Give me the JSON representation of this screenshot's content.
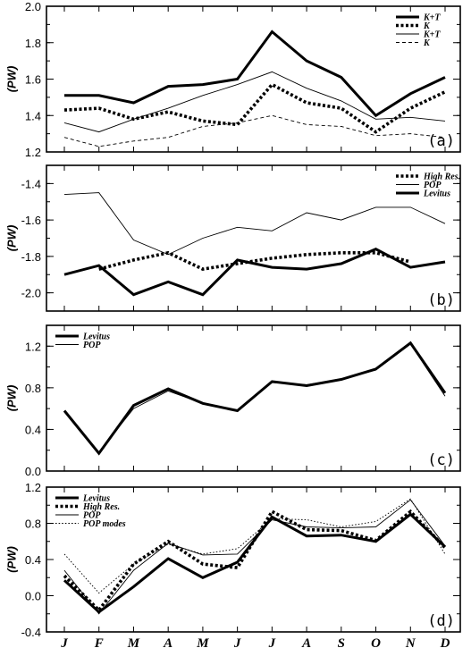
{
  "chart_data": [
    {
      "type": "line",
      "panel_label": "(a)",
      "ylabel": "(PW)",
      "ylim": [
        1.2,
        2.0
      ],
      "yticks": [
        1.2,
        1.4,
        1.6,
        1.8,
        2.0
      ],
      "ytick_labels": [
        "1.2",
        "1.4",
        "1.6",
        "1.8",
        "2.0"
      ],
      "minor_step": 0.1,
      "legend_position": "top-right",
      "categories": [
        "J",
        "F",
        "M",
        "A",
        "M",
        "J",
        "J",
        "A",
        "S",
        "O",
        "N",
        "D"
      ],
      "series": [
        {
          "name": "K+T",
          "style": "thick-solid",
          "values": [
            1.51,
            1.51,
            1.47,
            1.56,
            1.57,
            1.6,
            1.86,
            1.7,
            1.61,
            1.4,
            1.52,
            1.61
          ]
        },
        {
          "name": "K",
          "style": "thick-dotted",
          "values": [
            1.43,
            1.44,
            1.38,
            1.42,
            1.37,
            1.35,
            1.57,
            1.47,
            1.44,
            1.31,
            1.44,
            1.53
          ]
        },
        {
          "name": "K+T",
          "style": "thin-solid",
          "values": [
            1.36,
            1.31,
            1.38,
            1.44,
            1.51,
            1.57,
            1.64,
            1.55,
            1.48,
            1.38,
            1.39,
            1.37
          ]
        },
        {
          "name": "K",
          "style": "thin-dashed",
          "values": [
            1.28,
            1.23,
            1.26,
            1.28,
            1.34,
            1.36,
            1.4,
            1.35,
            1.34,
            1.29,
            1.3,
            1.28
          ]
        }
      ]
    },
    {
      "type": "line",
      "panel_label": "(b)",
      "ylabel": "(PW)",
      "ylim": [
        -2.1,
        -1.3
      ],
      "yticks": [
        -2.0,
        -1.8,
        -1.6,
        -1.4
      ],
      "ytick_labels": [
        "-2.0",
        "-1.8",
        "-1.6",
        "-1.4"
      ],
      "minor_step": 0.1,
      "legend_position": "top-right",
      "categories": [
        "J",
        "F",
        "M",
        "A",
        "M",
        "J",
        "J",
        "A",
        "S",
        "O",
        "N",
        "D"
      ],
      "series": [
        {
          "name": "High Res.",
          "style": "thick-dotted",
          "values": [
            null,
            -1.87,
            -1.82,
            -1.78,
            -1.87,
            -1.84,
            -1.81,
            -1.79,
            -1.78,
            -1.78,
            -1.83,
            null
          ]
        },
        {
          "name": "POP",
          "style": "thin-solid",
          "values": [
            -1.46,
            -1.45,
            -1.71,
            -1.79,
            -1.7,
            -1.64,
            -1.66,
            -1.56,
            -1.6,
            -1.53,
            -1.53,
            -1.62
          ]
        },
        {
          "name": "Levitus",
          "style": "thick-solid",
          "values": [
            -1.9,
            -1.85,
            -2.01,
            -1.94,
            -2.01,
            -1.82,
            -1.86,
            -1.87,
            -1.84,
            -1.76,
            -1.86,
            -1.83
          ]
        }
      ]
    },
    {
      "type": "line",
      "panel_label": "(c)",
      "ylabel": "(PW)",
      "ylim": [
        0.0,
        1.4
      ],
      "yticks": [
        0.0,
        0.4,
        0.8,
        1.2
      ],
      "ytick_labels": [
        "0.0",
        "0.4",
        "0.8",
        "1.2"
      ],
      "minor_step": 0.2,
      "legend_position": "top-left",
      "categories": [
        "J",
        "F",
        "M",
        "A",
        "M",
        "J",
        "J",
        "A",
        "S",
        "O",
        "N",
        "D"
      ],
      "series": [
        {
          "name": "Levitus",
          "style": "thick-solid",
          "values": [
            0.58,
            0.17,
            0.63,
            0.79,
            0.65,
            0.58,
            0.86,
            0.82,
            0.88,
            0.98,
            1.23,
            0.75
          ]
        },
        {
          "name": "POP",
          "style": "thin-solid",
          "values": [
            0.57,
            0.18,
            0.6,
            0.77,
            0.65,
            0.58,
            0.85,
            0.83,
            0.88,
            0.97,
            1.22,
            0.72
          ]
        }
      ]
    },
    {
      "type": "line",
      "panel_label": "(d)",
      "ylabel": "(PW)",
      "ylim": [
        -0.4,
        1.2
      ],
      "yticks": [
        -0.4,
        0.0,
        0.4,
        0.8,
        1.2
      ],
      "ytick_labels": [
        "-0.4",
        "0.0",
        "0.4",
        "0.8",
        "1.2"
      ],
      "minor_step": 0.2,
      "legend_position": "top-left",
      "categories": [
        "J",
        "F",
        "M",
        "A",
        "M",
        "J",
        "J",
        "A",
        "S",
        "O",
        "N",
        "D"
      ],
      "series": [
        {
          "name": "Levitus",
          "style": "thick-solid",
          "values": [
            0.17,
            -0.18,
            0.1,
            0.41,
            0.2,
            0.37,
            0.87,
            0.66,
            0.67,
            0.6,
            0.9,
            0.54
          ]
        },
        {
          "name": "High Res.",
          "style": "thick-dotted",
          "values": [
            0.22,
            -0.16,
            0.35,
            0.6,
            0.35,
            0.31,
            0.93,
            0.73,
            0.72,
            0.61,
            0.93,
            0.53
          ]
        },
        {
          "name": "POP",
          "style": "thin-solid",
          "values": [
            0.28,
            -0.2,
            0.28,
            0.58,
            0.45,
            0.46,
            0.84,
            0.76,
            0.75,
            0.76,
            1.06,
            0.55
          ]
        },
        {
          "name": "POP modes",
          "style": "thin-dotted",
          "values": [
            0.46,
            0.03,
            0.35,
            0.57,
            0.46,
            0.52,
            0.85,
            0.84,
            0.76,
            0.82,
            1.07,
            0.46
          ]
        }
      ]
    }
  ]
}
